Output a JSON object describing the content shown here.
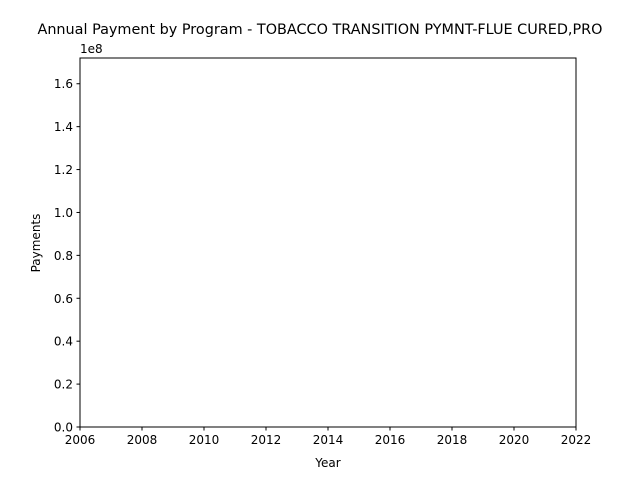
{
  "chart_data": {
    "type": "line",
    "title": "Annual Payment by Program - TOBACCO TRANSITION PYMNT-FLUE CURED,PRO",
    "xlabel": "Year",
    "ylabel": "Payments",
    "offset_text": "1e8",
    "xlim": [
      2006,
      2022
    ],
    "ylim": [
      0,
      1.72
    ],
    "y_scale_multiplier": 100000000,
    "x_ticks": [
      2006,
      2008,
      2010,
      2012,
      2014,
      2016,
      2018,
      2020,
      2022
    ],
    "x_tick_labels": [
      "2006",
      "2008",
      "2010",
      "2012",
      "2014",
      "2016",
      "2018",
      "2020",
      "2022"
    ],
    "y_ticks": [
      0.0,
      0.2,
      0.4,
      0.6,
      0.8,
      1.0,
      1.2,
      1.4,
      1.6
    ],
    "y_tick_labels": [
      "0.0",
      "0.2",
      "0.4",
      "0.6",
      "0.8",
      "1.0",
      "1.2",
      "1.4",
      "1.6"
    ],
    "grid": false,
    "series": [],
    "colors": {
      "axes": "#000000",
      "background": "#ffffff"
    }
  }
}
